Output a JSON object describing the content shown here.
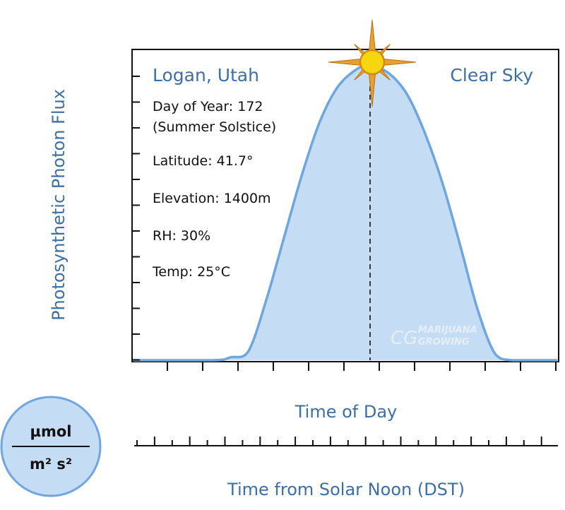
{
  "chart_data": {
    "type": "area",
    "title": "",
    "location": "Logan, Utah",
    "condition": "Clear Sky",
    "ylabel": "Photosynthetic Photon Flux",
    "xlabel_top": "Time of Day",
    "xlabel_bottom": "Time from Solar Noon (DST)",
    "unit_numerator": "µmol",
    "unit_denominator": "m² s²",
    "info_lines": [
      "Day of Year: 172",
      "(Summer Solstice)",
      "Latitude: 41.7°",
      "Elevation: 1400m",
      "RH: 30%",
      "Temp: 25°C"
    ],
    "watermark": [
      "MARIJUANA",
      "GROWING"
    ],
    "xlim": [
      0,
      24
    ],
    "ylim": [
      0,
      1
    ],
    "solar_noon": 13.4,
    "series": [
      {
        "x": [
          0,
          4.5,
          5.5,
          6.5,
          7.5,
          8.5,
          9.5,
          10.5,
          11.5,
          12.5,
          13.4,
          14.5,
          15.5,
          16.5,
          17.5,
          18.5,
          19.5,
          20.5,
          21.5,
          24
        ],
        "y": [
          0,
          0,
          0.01,
          0.03,
          0.2,
          0.41,
          0.62,
          0.8,
          0.92,
          0.98,
          1.0,
          0.97,
          0.9,
          0.77,
          0.6,
          0.39,
          0.17,
          0.02,
          0,
          0
        ]
      }
    ],
    "fill_color": "#c4dcf4",
    "line_color": "#6fa6dd",
    "accent_color": "#3d6fa3",
    "sun_color": "#f5d60f",
    "sun_ray_color": "#e8a030"
  }
}
